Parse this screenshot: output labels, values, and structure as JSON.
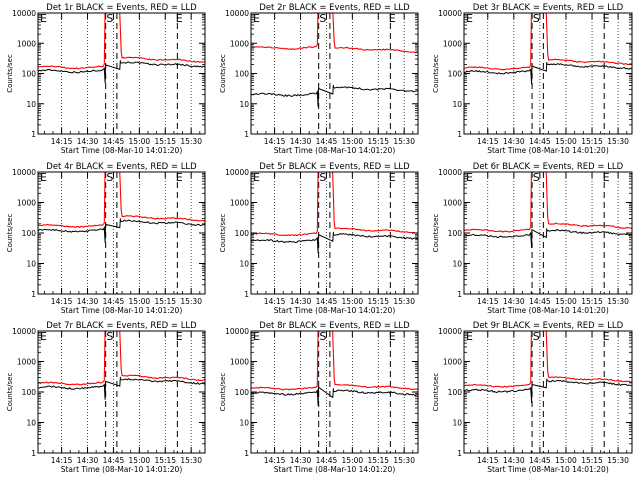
{
  "colors": {
    "background": "#ffffff",
    "axis": "#000000",
    "events": "#000000",
    "lld": "#ff0000"
  },
  "shared": {
    "ylabel": "Counts/sec",
    "xlabel": "Start Time (08-Mar-10 14:01:20)",
    "x_ticks": [
      "14:15",
      "14:30",
      "14:45",
      "15:00",
      "15:15",
      "15:30"
    ],
    "y_ticks": [
      "1",
      "10",
      "100",
      "1000",
      "10000"
    ],
    "markers": [
      "E",
      "S",
      "E"
    ]
  },
  "chart_data": [
    {
      "type": "line",
      "title": "Det 1r BLACK = Events, RED = LLD",
      "y_scale": "log",
      "ylim": [
        1,
        10000
      ],
      "series": [
        {
          "name": "Events",
          "level": 120,
          "post": 230,
          "x": [
            "14:01",
            "14:35",
            "14:55",
            "15:38"
          ]
        },
        {
          "name": "LLD",
          "level": 160,
          "post": 330
        }
      ]
    },
    {
      "type": "line",
      "title": "Det 2r BLACK = Events, RED = LLD",
      "y_scale": "log",
      "ylim": [
        1,
        10000
      ],
      "series": [
        {
          "name": "Events",
          "level": 20,
          "post": 35
        },
        {
          "name": "LLD",
          "level": 700,
          "post": 700
        }
      ]
    },
    {
      "type": "line",
      "title": "Det 3r BLACK = Events, RED = LLD",
      "y_scale": "log",
      "ylim": [
        1,
        10000
      ],
      "series": [
        {
          "name": "Events",
          "level": 110,
          "post": 200
        },
        {
          "name": "LLD",
          "level": 150,
          "post": 280
        }
      ]
    },
    {
      "type": "line",
      "title": "Det 4r BLACK = Events, RED = LLD",
      "y_scale": "log",
      "ylim": [
        1,
        10000
      ],
      "series": [
        {
          "name": "Events",
          "level": 120,
          "post": 250
        },
        {
          "name": "LLD",
          "level": 170,
          "post": 350
        }
      ]
    },
    {
      "type": "line",
      "title": "Det 5r BLACK = Events, RED = LLD",
      "y_scale": "log",
      "ylim": [
        1,
        10000
      ],
      "series": [
        {
          "name": "Events",
          "level": 55,
          "post": 90
        },
        {
          "name": "LLD",
          "level": 90,
          "post": 140
        }
      ]
    },
    {
      "type": "line",
      "title": "Det 6r BLACK = Events, RED = LLD",
      "y_scale": "log",
      "ylim": [
        1,
        10000
      ],
      "series": [
        {
          "name": "Events",
          "level": 80,
          "post": 120
        },
        {
          "name": "LLD",
          "level": 120,
          "post": 200
        }
      ]
    },
    {
      "type": "line",
      "title": "Det 7r BLACK = Events, RED = LLD",
      "y_scale": "log",
      "ylim": [
        1,
        10000
      ],
      "series": [
        {
          "name": "Events",
          "level": 140,
          "post": 260
        },
        {
          "name": "LLD",
          "level": 190,
          "post": 340
        }
      ]
    },
    {
      "type": "line",
      "title": "Det 8r BLACK = Events, RED = LLD",
      "y_scale": "log",
      "ylim": [
        1,
        10000
      ],
      "series": [
        {
          "name": "Events",
          "level": 90,
          "post": 110
        },
        {
          "name": "LLD",
          "level": 130,
          "post": 170
        }
      ]
    },
    {
      "type": "line",
      "title": "Det 9r BLACK = Events, RED = LLD",
      "y_scale": "log",
      "ylim": [
        1,
        10000
      ],
      "series": [
        {
          "name": "Events",
          "level": 110,
          "post": 230
        },
        {
          "name": "LLD",
          "level": 160,
          "post": 300
        }
      ]
    }
  ]
}
